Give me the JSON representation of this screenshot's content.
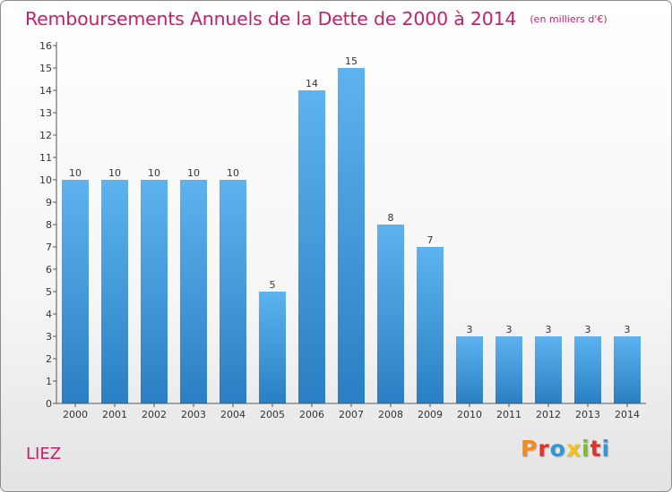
{
  "header": {
    "title": "Remboursements Annuels de la Dette de 2000 à 2014",
    "subtitle": "(en milliers d'€)"
  },
  "footer": {
    "commune": "LIEZ",
    "brand": "Proxiti",
    "brand_colors": [
      "#f28c1c",
      "#e0332b",
      "#2d9ad6",
      "#f6c21c",
      "#7bbf2a",
      "#e0332b",
      "#2d9ad6"
    ]
  },
  "colors": {
    "title": "#c4206a",
    "bar_light": "#5db3ef",
    "bar_dark": "#2a7fc4",
    "axis": "#555555"
  },
  "chart_data": {
    "type": "bar",
    "categories": [
      "2000",
      "2001",
      "2002",
      "2003",
      "2004",
      "2005",
      "2006",
      "2007",
      "2008",
      "2009",
      "2010",
      "2011",
      "2012",
      "2013",
      "2014"
    ],
    "values": [
      10,
      10,
      10,
      10,
      10,
      5,
      14,
      15,
      8,
      7,
      3,
      3,
      3,
      3,
      3
    ],
    "y_ticks": [
      "0",
      "1",
      "2",
      "3",
      "4",
      "5",
      "6",
      "7",
      "8",
      "9",
      "10",
      "11",
      "12",
      "13",
      "14",
      "15",
      "16"
    ],
    "ylim": [
      0,
      16
    ],
    "data_labels": true,
    "grid": false,
    "xlabel": "",
    "ylabel": ""
  }
}
